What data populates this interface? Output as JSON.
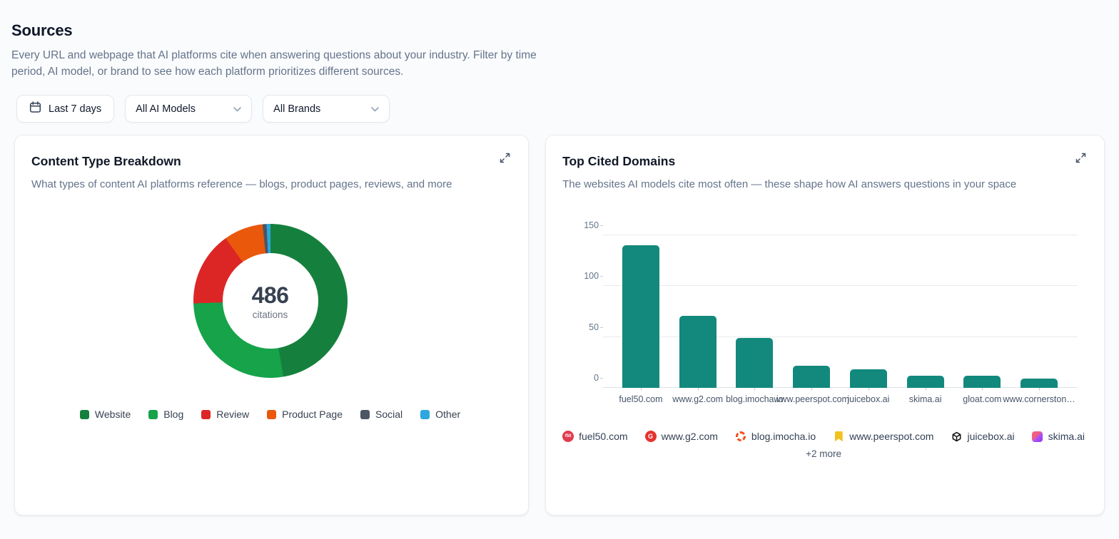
{
  "page": {
    "title": "Sources",
    "description": "Every URL and webpage that AI platforms cite when answering questions about your industry. Filter by time period, AI model, or brand to see how each platform prioritizes different sources."
  },
  "filters": {
    "date_range": "Last 7 days",
    "ai_model": "All AI Models",
    "brand": "All Brands"
  },
  "content_card": {
    "title": "Content Type Breakdown",
    "subtitle": "What types of content AI platforms reference — blogs, product pages, reviews, and more",
    "center_value": "486",
    "center_label": "citations"
  },
  "domains_card": {
    "title": "Top Cited Domains",
    "subtitle": "The websites AI models cite most often — these shape how AI answers questions in your space",
    "more_label": "+2 more"
  },
  "chart_data": [
    {
      "type": "pie",
      "title": "Content Type Breakdown",
      "total": 486,
      "unit": "citations",
      "legend_position": "bottom",
      "segments": [
        {
          "label": "Website",
          "value": 230,
          "color": "#15803d"
        },
        {
          "label": "Blog",
          "value": 132,
          "color": "#16a34a"
        },
        {
          "label": "Review",
          "value": 76,
          "color": "#dc2626"
        },
        {
          "label": "Product Page",
          "value": 40,
          "color": "#ea580c"
        },
        {
          "label": "Social",
          "value": 4,
          "color": "#4b5563"
        },
        {
          "label": "Other",
          "value": 4,
          "color": "#2da7dd"
        }
      ]
    },
    {
      "type": "bar",
      "title": "Top Cited Domains",
      "categories": [
        "fuel50.com",
        "www.g2.com",
        "blog.imocha.io",
        "www.peerspot.com",
        "juicebox.ai",
        "skima.ai",
        "gloat.com",
        "www.cornerston…"
      ],
      "values": [
        140,
        71,
        49,
        22,
        18,
        12,
        12,
        9
      ],
      "bar_color": "#12897c",
      "xlabel": "",
      "ylabel": "",
      "ylim": [
        0,
        150
      ],
      "yticks": [
        0,
        50,
        100,
        150
      ],
      "grid": true
    }
  ],
  "domain_legend": {
    "items": [
      {
        "label": "fuel50.com",
        "icon": "fuel50-favicon",
        "color": "#e23b4e",
        "glyph": "f50"
      },
      {
        "label": "www.g2.com",
        "icon": "g2-favicon",
        "color": "#e4342f",
        "glyph": "G"
      },
      {
        "label": "blog.imocha.io",
        "icon": "imocha-favicon",
        "color": "#f4511e",
        "glyph": ""
      },
      {
        "label": "www.peerspot.com",
        "icon": "peerspot-favicon",
        "color": "#f2c21d",
        "glyph": ""
      },
      {
        "label": "juicebox.ai",
        "icon": "juicebox-favicon",
        "color": "#111111",
        "glyph": ""
      },
      {
        "label": "skima.ai",
        "icon": "skima-favicon",
        "color": "#a855f7",
        "glyph": ""
      }
    ]
  }
}
